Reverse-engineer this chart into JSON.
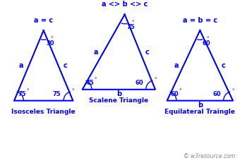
{
  "bg_color": "#ffffff",
  "triangle_color": "blue",
  "text_color": "blue",
  "watermark": "© w3resource.com",
  "isosceles": {
    "apex": [
      0.175,
      0.82
    ],
    "bl": [
      0.05,
      0.38
    ],
    "br": [
      0.3,
      0.38
    ],
    "top_label": "a = c",
    "label": "Isosceles Triangle",
    "side_a": "a",
    "side_c": "c",
    "side_b": "",
    "ang_top": "30",
    "ang_bl": "75",
    "ang_br": "75"
  },
  "scalene": {
    "apex": [
      0.52,
      0.92
    ],
    "bl": [
      0.34,
      0.45
    ],
    "br": [
      0.65,
      0.45
    ],
    "top_label": "a <> b <> c",
    "label": "Scalene Triangle",
    "side_a": "a",
    "side_c": "c",
    "side_b": "b",
    "ang_top": "75",
    "ang_bl": "45",
    "ang_br": "60"
  },
  "equilateral": {
    "apex": [
      0.84,
      0.82
    ],
    "bl": [
      0.7,
      0.38
    ],
    "br": [
      0.98,
      0.38
    ],
    "top_label": "a = b = c",
    "label": "Equilateral Traingle",
    "side_a": "a",
    "side_c": "c",
    "side_b": "b",
    "ang_top": "60",
    "ang_bl": "60",
    "ang_br": "60"
  },
  "fig_w": 3.4,
  "fig_h": 2.31,
  "dpi": 100
}
